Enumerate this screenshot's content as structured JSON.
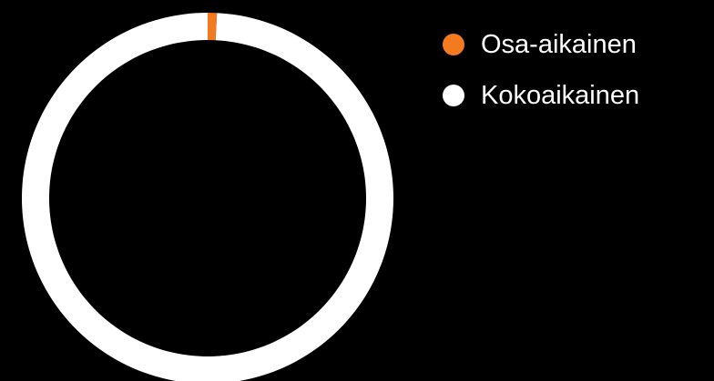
{
  "chart_data": {
    "type": "pie",
    "donut": true,
    "categories": [
      "Osa-aikainen",
      "Kokoaikainen"
    ],
    "values": [
      0.8,
      99.2
    ],
    "colors": [
      "#f47a1f",
      "#ffffff"
    ],
    "title": "",
    "legend_position": "right"
  },
  "legend": {
    "items": [
      {
        "label": "Osa-aikainen",
        "color": "#f47a1f"
      },
      {
        "label": "Kokoaikainen",
        "color": "#ffffff"
      }
    ]
  }
}
